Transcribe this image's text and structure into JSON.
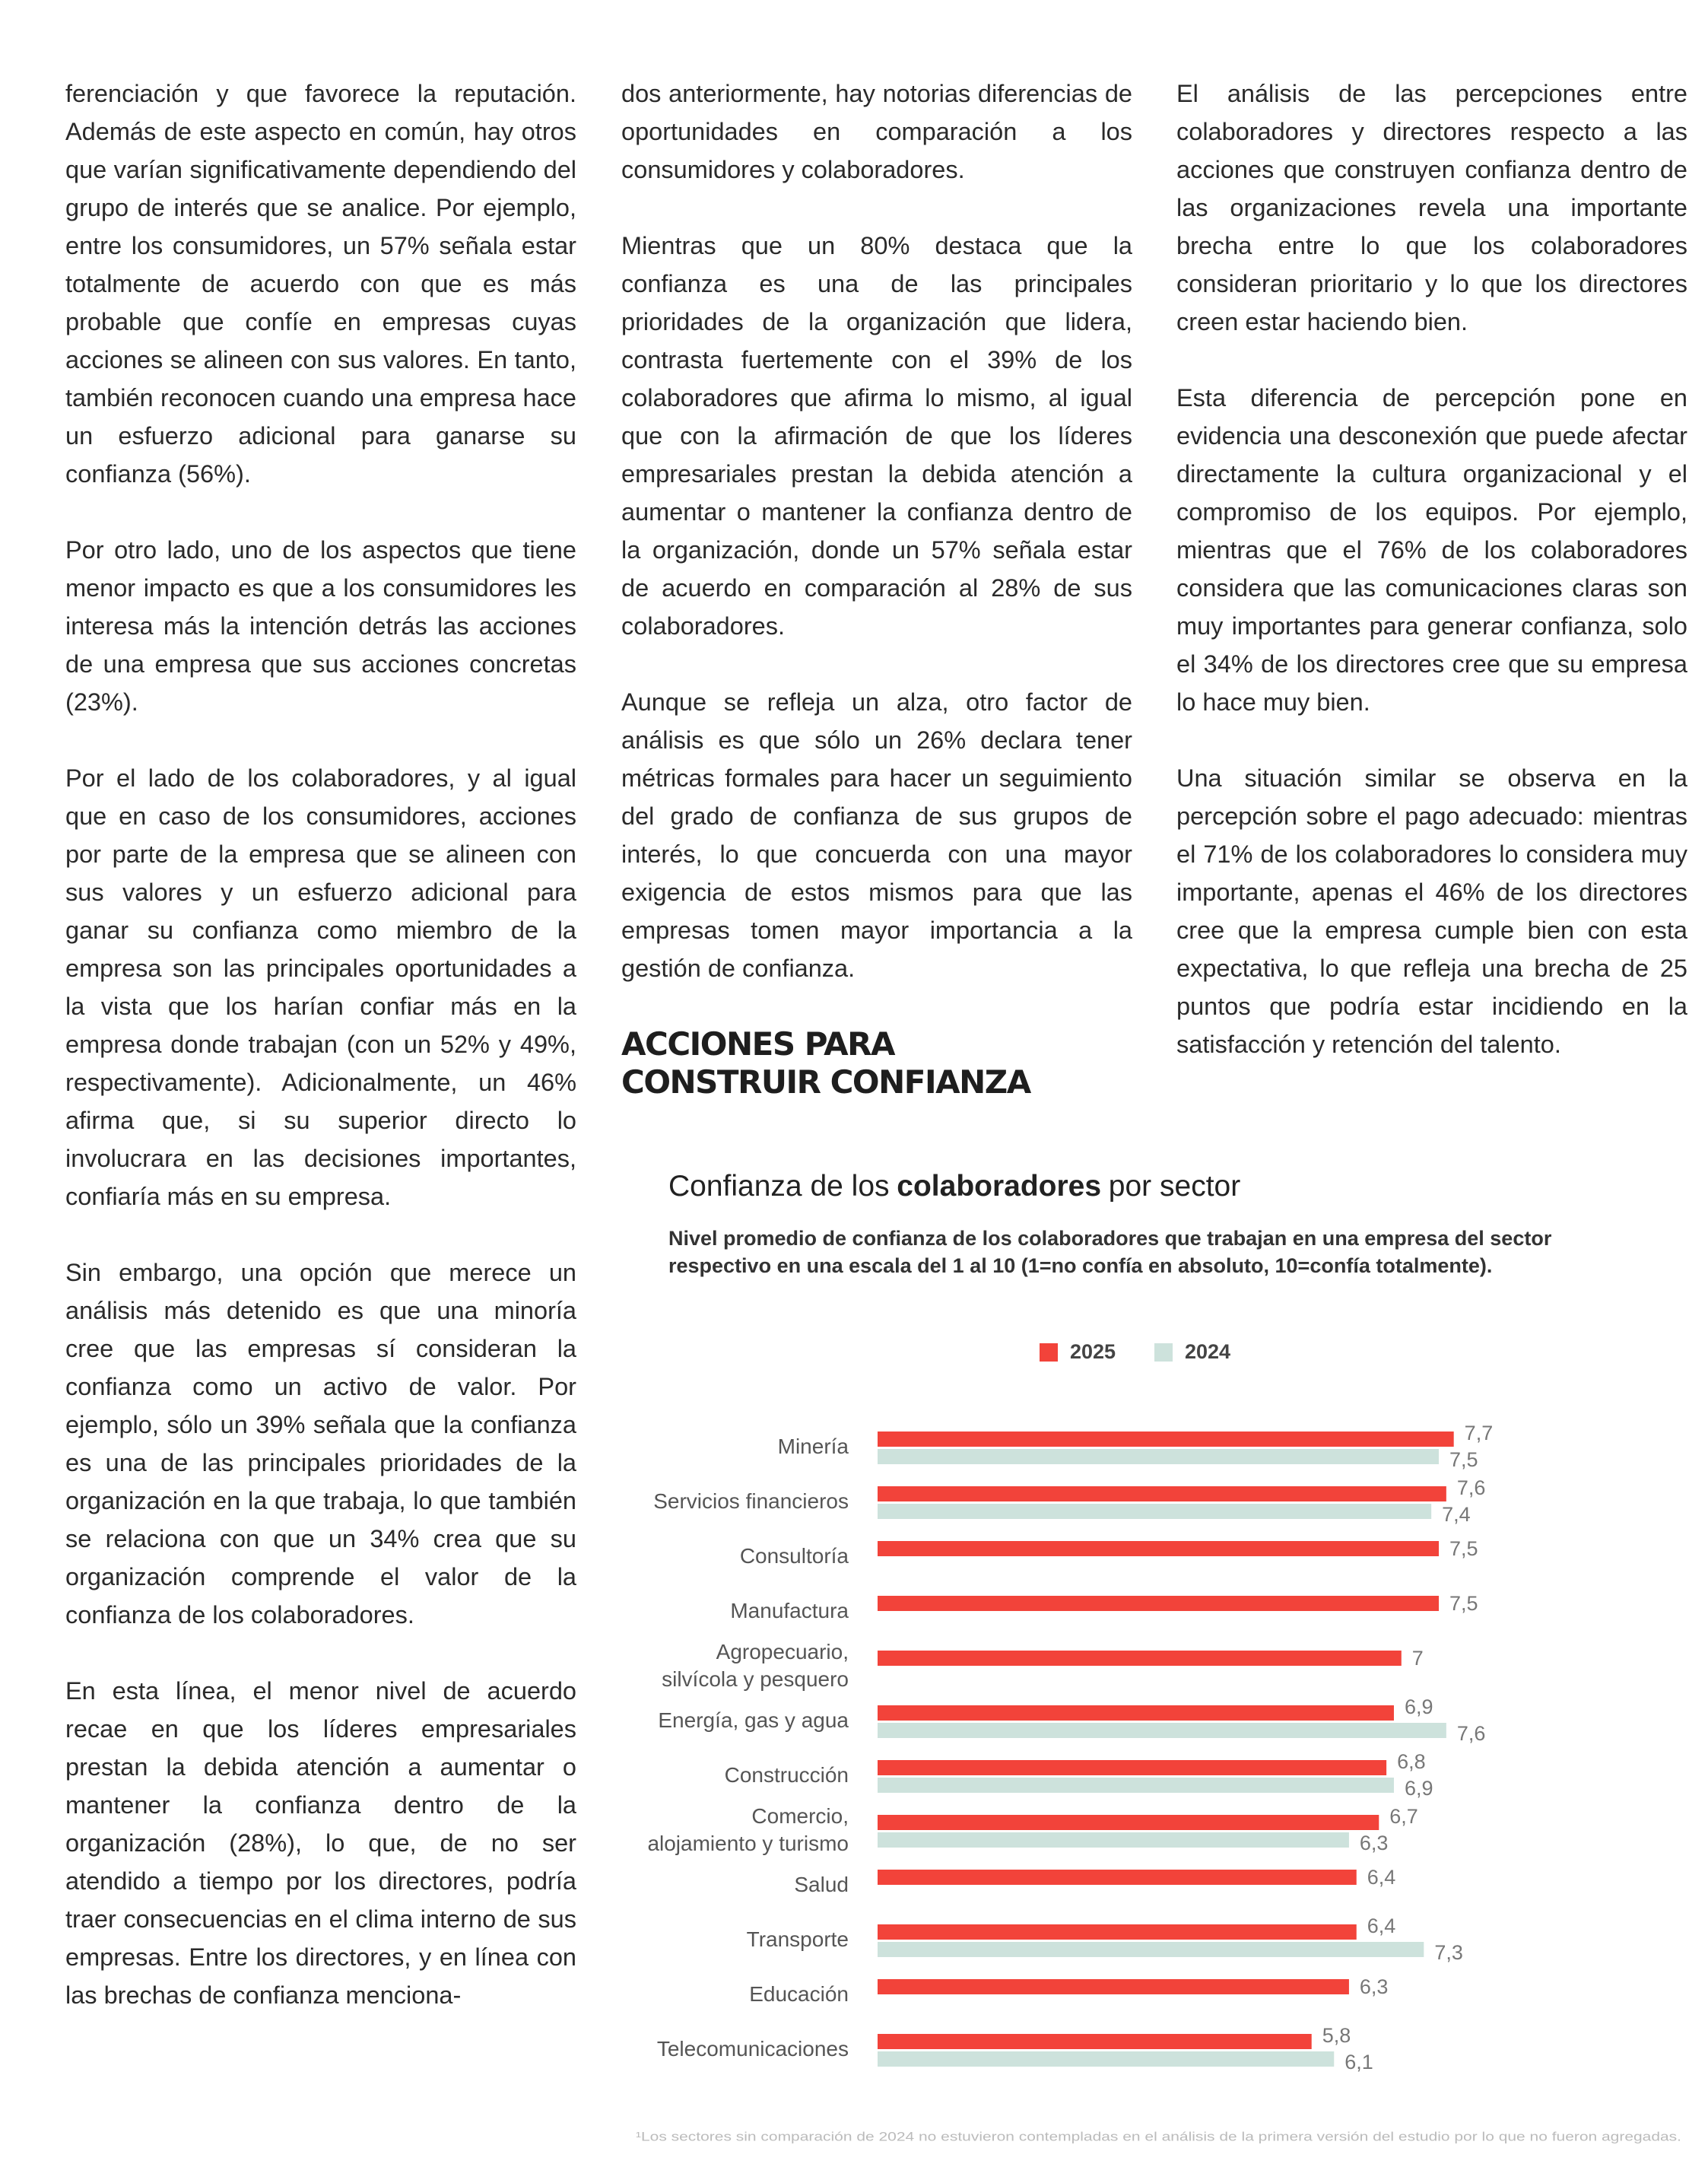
{
  "columns": [
    {
      "paragraphs": [
        "ferenciación y que favorece la reputación. Además de este aspecto en común, hay otros que varían significativamente dependiendo del grupo de interés que se analice. Por ejemplo, entre los consumidores, un 57% señala estar totalmente de acuerdo con que es más probable que confíe en empresas cuyas acciones se alineen con sus valores. En tanto, también reconocen cuando una empresa hace un esfuerzo adicional para ganarse su confianza (56%).",
        "Por otro lado, uno de los aspectos que tiene menor impacto es que a los consumidores les interesa más la intención detrás las acciones de una empresa que sus acciones concretas (23%).",
        "Por el lado de los colaboradores, y al igual que en caso de los consumidores, acciones por parte de la empresa que se alineen con sus valores y un esfuerzo adicional para ganar su confianza como miembro de la empresa son las principales oportunidades a la vista que los harían confiar más en la empresa donde trabajan (con un 52% y 49%, respectivamente). Adicionalmente, un 46% afirma que, si su superior directo lo involucrara en las decisiones importantes, confiaría más en su empresa.",
        "Sin embargo, una opción que merece un análisis más detenido es que una minoría cree que las empresas sí consideran la confianza como un activo de valor. Por ejemplo, sólo un 39% señala que la confianza es una de las principales prioridades de la organización en la que trabaja, lo que también se relaciona con que un 34% crea que su organización comprende el valor de la confianza de los colaboradores.",
        "En esta línea, el menor nivel de acuerdo recae en que los líderes empresariales prestan la debida atención a aumentar o mantener la confianza dentro de la organización (28%), lo que, de no ser atendido a tiempo por los directores, podría traer consecuencias en el clima interno de sus empresas. Entre los directores, y en línea con las brechas de confianza menciona-"
      ]
    },
    {
      "paragraphs": [
        "dos anteriormente, hay notorias diferencias de oportunidades en comparación a los consumidores y colaboradores.",
        "Mientras que un 80% destaca que la confianza es una de las principales prioridades de la organización que lidera, contrasta fuertemente con el 39% de los colaboradores que afirma lo mismo, al igual que con la afirmación de que los líderes empresariales prestan la debida atención a aumentar o mantener la confianza dentro de la organización, donde un 57% señala estar de acuerdo en comparación al 28% de sus colaboradores.",
        "Aunque se refleja un alza, otro factor de análisis es que sólo un 26% declara tener métricas formales para hacer un seguimiento del grado de confianza de sus grupos de interés, lo que concuerda con una mayor exigencia de estos mismos para que las empresas tomen mayor importancia a la gestión de confianza."
      ],
      "heading": [
        "ACCIONES PARA",
        "CONSTRUIR CONFIANZA"
      ]
    },
    {
      "paragraphs": [
        "El análisis de las percepciones entre colaboradores y directores respecto a las acciones que construyen confianza dentro de las organizaciones revela una importante brecha entre lo que los colaboradores consideran prioritario y lo que los directores creen estar haciendo bien.",
        "Esta diferencia de percepción pone en evidencia una desconexión que puede afectar directamente la cultura organizacional y el compromiso de los equipos. Por ejemplo, mientras que el 76% de los colaboradores considera que las comunicaciones claras son muy importantes para generar confianza, solo el 34% de los directores cree que su empresa lo hace muy bien.",
        "Una situación similar se observa en la percepción sobre el pago adecuado: mientras el 71% de los colaboradores lo considera muy importante, apenas el 46% de los directores cree que la empresa cumple bien con esta expectativa, lo que refleja una brecha de 25 puntos que podría estar incidiendo en la satisfacción y retención del talento."
      ]
    }
  ],
  "chart_data": {
    "type": "bar",
    "orientation": "horizontal",
    "title": [
      "Confianza de los",
      "colaboradores",
      "por sector"
    ],
    "subtitle": "Nivel promedio de confianza de los colaboradores que trabajan en una empresa del sector respectivo en una escala del 1 al 10 (1=no confía en absoluto, 10=confía totalmente).",
    "categories": [
      "Minería",
      "Servicios financieros",
      "Consultoría",
      "Manufactura",
      "Agropecuario,\nsilvícola y pesquero",
      "Energía, gas y agua",
      "Construcción",
      "Comercio,\nalojamiento y turismo",
      "Salud",
      "Transporte",
      "Educación",
      "Telecomunicaciones"
    ],
    "series": [
      {
        "name": "2025",
        "color": "#f2433a",
        "values": [
          7.7,
          7.6,
          7.5,
          7.5,
          7,
          6.9,
          6.8,
          6.7,
          6.4,
          6.4,
          6.3,
          5.8
        ],
        "value_labels": [
          "7,7",
          "7,6",
          "7,5",
          "7,5",
          "7",
          "6,9",
          "6,8",
          "6,7",
          "6,4",
          "6,4",
          "6,3",
          "5,8"
        ]
      },
      {
        "name": "2024",
        "color": "#cde2dc",
        "values": [
          7.5,
          7.4,
          null,
          null,
          null,
          7.6,
          6.9,
          6.3,
          null,
          7.3,
          null,
          6.1
        ],
        "value_labels": [
          "7,5",
          "7,4",
          null,
          null,
          null,
          "7,6",
          "6,9",
          "6,3",
          null,
          "7,3",
          null,
          "6,1"
        ]
      }
    ],
    "xlim": [
      0,
      10
    ],
    "footnote": "¹Los sectores sin comparación de 2024 no estuvieron contempladas en el análisis de la primera versión del estudio por lo que no fueron agregadas."
  }
}
